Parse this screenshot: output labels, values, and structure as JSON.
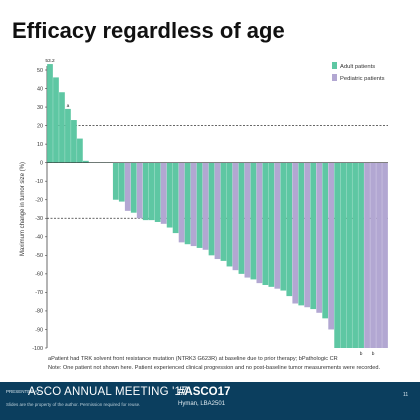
{
  "slide": {
    "title": "Efficacy regardless of age",
    "footnote_1": "aPatient had TRK solvent front resistance mutation (NTRK3 G623R) at baseline due to prior therapy; bPathologic CR",
    "footnote_2": "Note: One patient not shown here. Patient experienced clinical progression and no post-baseline tumor measurements were recorded."
  },
  "footer": {
    "presented_at": "PRESENTED AT:",
    "meeting": "ASCO ANNUAL MEETING '17",
    "hashtag": "#ASCO17",
    "slides_note": "Slides are the property of the author. Permission required for reuse.",
    "presenter": "Hyman, LBA2501",
    "page_number": "11"
  },
  "colors": {
    "adult": "#5ec7a3",
    "pediatric": "#b2a7d2",
    "footer_bg": "#0b3e5e"
  },
  "chart_data": {
    "type": "bar",
    "ylabel": "Maximum change in tumor size (%)",
    "ylim": [
      -100,
      50
    ],
    "yticks": [
      50,
      40,
      30,
      20,
      10,
      0,
      -10,
      -20,
      -30,
      -40,
      -50,
      -60,
      -70,
      -80,
      -90,
      -100
    ],
    "reference_lines": [
      20,
      -30
    ],
    "legend": {
      "position": "top-right",
      "entries": [
        {
          "label": "Adult patients",
          "color": "#5ec7a3"
        },
        {
          "label": "Pediatric patients",
          "color": "#b2a7d2"
        }
      ]
    },
    "annotations": [
      {
        "bar": 0,
        "text": "53.2"
      },
      {
        "bar": 3,
        "text": "a"
      },
      {
        "bar": 52,
        "text": "b"
      },
      {
        "bar": 54,
        "text": "b"
      }
    ],
    "series": [
      {
        "name": "Adult patients",
        "group": "adult"
      },
      {
        "name": "Pediatric patients",
        "group": "pediatric"
      }
    ],
    "values": [
      53.2,
      46,
      38,
      29,
      23,
      13,
      1,
      0,
      0,
      0,
      0,
      -20,
      -21,
      -26,
      -27,
      -30,
      -31,
      -31,
      -32,
      -33,
      -35,
      -38,
      -43,
      -44,
      -45,
      -46,
      -47,
      -50,
      -52,
      -53,
      -56,
      -58,
      -60,
      -62,
      -63,
      -65,
      -66,
      -67,
      -68,
      -69,
      -72,
      -76,
      -77,
      -78,
      -79,
      -81,
      -84,
      -90,
      -100,
      -100,
      -100,
      -100,
      -100,
      -100,
      -100,
      -100,
      -100
    ],
    "groups": [
      "adult",
      "adult",
      "adult",
      "adult",
      "adult",
      "adult",
      "adult",
      "adult",
      "adult",
      "adult",
      "adult",
      "adult",
      "adult",
      "pediatric",
      "adult",
      "pediatric",
      "adult",
      "adult",
      "adult",
      "pediatric",
      "adult",
      "adult",
      "pediatric",
      "adult",
      "pediatric",
      "adult",
      "pediatric",
      "adult",
      "pediatric",
      "adult",
      "adult",
      "pediatric",
      "adult",
      "pediatric",
      "adult",
      "pediatric",
      "adult",
      "adult",
      "pediatric",
      "adult",
      "adult",
      "pediatric",
      "adult",
      "pediatric",
      "adult",
      "pediatric",
      "adult",
      "pediatric",
      "adult",
      "adult",
      "adult",
      "adult",
      "adult",
      "pediatric",
      "pediatric",
      "pediatric",
      "pediatric"
    ]
  }
}
